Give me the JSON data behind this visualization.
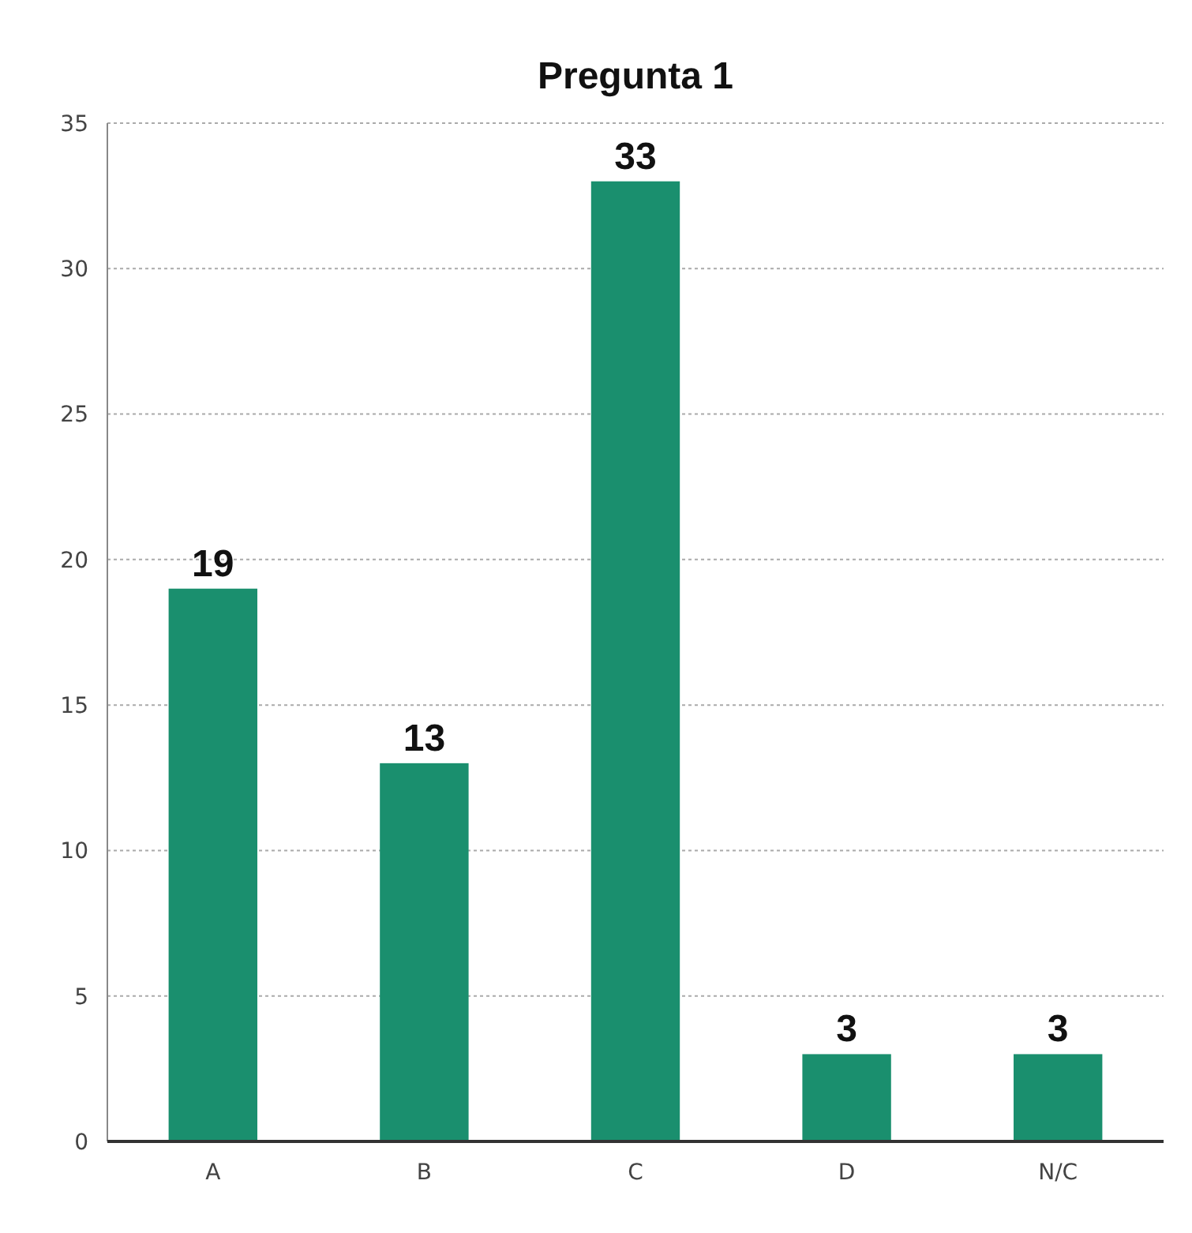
{
  "chart_data": {
    "type": "bar",
    "title": "Pregunta 1",
    "categories": [
      "A",
      "B",
      "C",
      "D",
      "N/C"
    ],
    "values": [
      19,
      13,
      33,
      3,
      3
    ],
    "color": "#1a8f6e",
    "ylim": [
      0,
      35
    ],
    "yticks": [
      0,
      5,
      10,
      15,
      20,
      25,
      30,
      35
    ],
    "grid": "y",
    "data_labels": true
  }
}
